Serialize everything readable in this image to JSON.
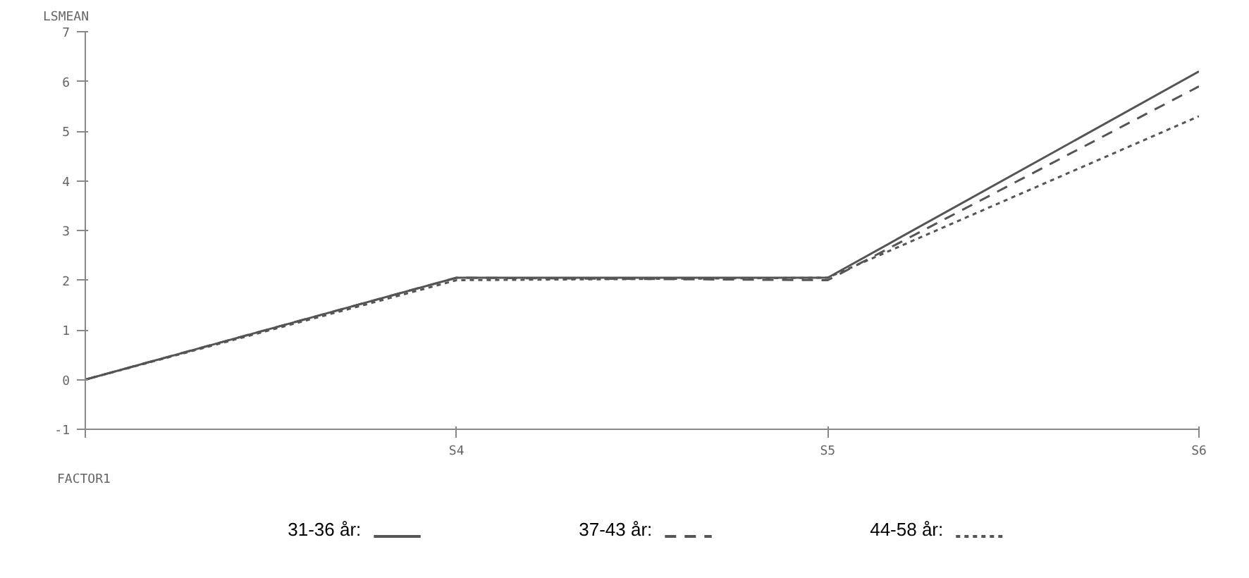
{
  "chart_data": {
    "type": "line",
    "xlabel": "FACTOR1",
    "ylabel": "LSMEAN",
    "categories": [
      null,
      "S4",
      "S5",
      "S6"
    ],
    "series": [
      {
        "name": "31-36 år:",
        "color": "#555555",
        "line_style": "solid",
        "values": [
          0,
          2.05,
          2.05,
          6.2
        ]
      },
      {
        "name": "37-43 år:",
        "color": "#555555",
        "line_style": "dashed",
        "values": [
          0,
          2.05,
          2.0,
          5.9
        ]
      },
      {
        "name": "44-58 år:",
        "color": "#555555",
        "line_style": "dotted",
        "values": [
          0,
          2.0,
          2.05,
          5.3
        ]
      }
    ],
    "ylim": [
      -1,
      7
    ],
    "yticks": [
      -1,
      0,
      1,
      2,
      3,
      4,
      5,
      6,
      7
    ],
    "grid": false,
    "legend": "bottom"
  }
}
